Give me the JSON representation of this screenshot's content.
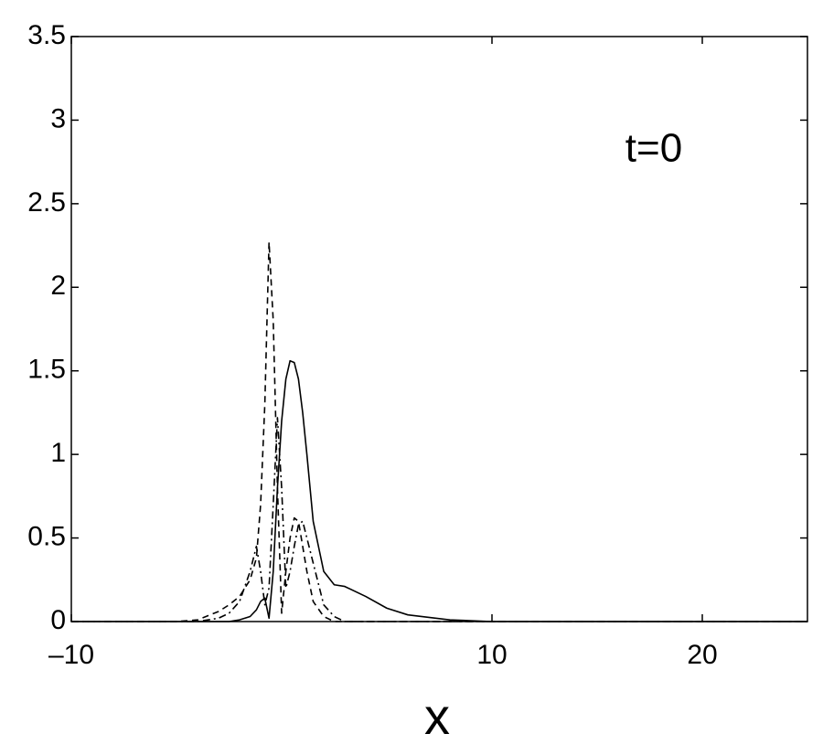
{
  "chart_data": {
    "type": "line",
    "xlabel": "x",
    "annotation": "t=0",
    "x": [
      -10,
      -5,
      -4,
      -3,
      -2.5,
      -2,
      -1.5,
      -1.2,
      -1,
      -0.8,
      -0.6,
      -0.4,
      -0.2,
      0,
      0.2,
      0.4,
      0.6,
      0.8,
      1,
      1.2,
      1.5,
      2,
      2.5,
      3,
      4,
      5,
      6,
      8,
      10,
      15,
      20,
      25
    ],
    "series": [
      {
        "color": "#000000",
        "linestyle": "solid",
        "values": [
          0,
          0,
          0,
          0,
          0,
          0.01,
          0.03,
          0.07,
          0.12,
          0.14,
          0.02,
          0.3,
          0.8,
          1.2,
          1.45,
          1.56,
          1.55,
          1.45,
          1.25,
          1.0,
          0.6,
          0.3,
          0.22,
          0.21,
          0.15,
          0.08,
          0.04,
          0.01,
          0,
          0,
          0,
          0
        ]
      },
      {
        "color": "#000000",
        "linestyle": "dashed",
        "values": [
          0,
          0,
          0.01,
          0.06,
          0.1,
          0.15,
          0.25,
          0.38,
          0.7,
          1.3,
          2.27,
          1.8,
          0.8,
          0.05,
          0.3,
          0.5,
          0.62,
          0.6,
          0.45,
          0.3,
          0.12,
          0.03,
          0,
          0,
          0,
          0,
          0,
          0,
          0,
          0,
          0,
          0
        ]
      },
      {
        "color": "#000000",
        "linestyle": "dashdot",
        "values": [
          0,
          0,
          0,
          0.02,
          0.05,
          0.12,
          0.3,
          0.45,
          0.3,
          0.1,
          0.2,
          0.7,
          1.22,
          0.8,
          0.2,
          0.3,
          0.45,
          0.58,
          0.6,
          0.5,
          0.35,
          0.1,
          0.03,
          0,
          0,
          0,
          0,
          0,
          0,
          0,
          0,
          0
        ]
      }
    ],
    "xlim": [
      -10,
      25
    ],
    "ylim": [
      0,
      3.5
    ],
    "xticks": [
      {
        "value": -10,
        "label": "–10"
      },
      10,
      20
    ],
    "yticks": [
      0,
      0.5,
      1,
      1.5,
      2,
      2.5,
      3,
      3.5
    ]
  }
}
